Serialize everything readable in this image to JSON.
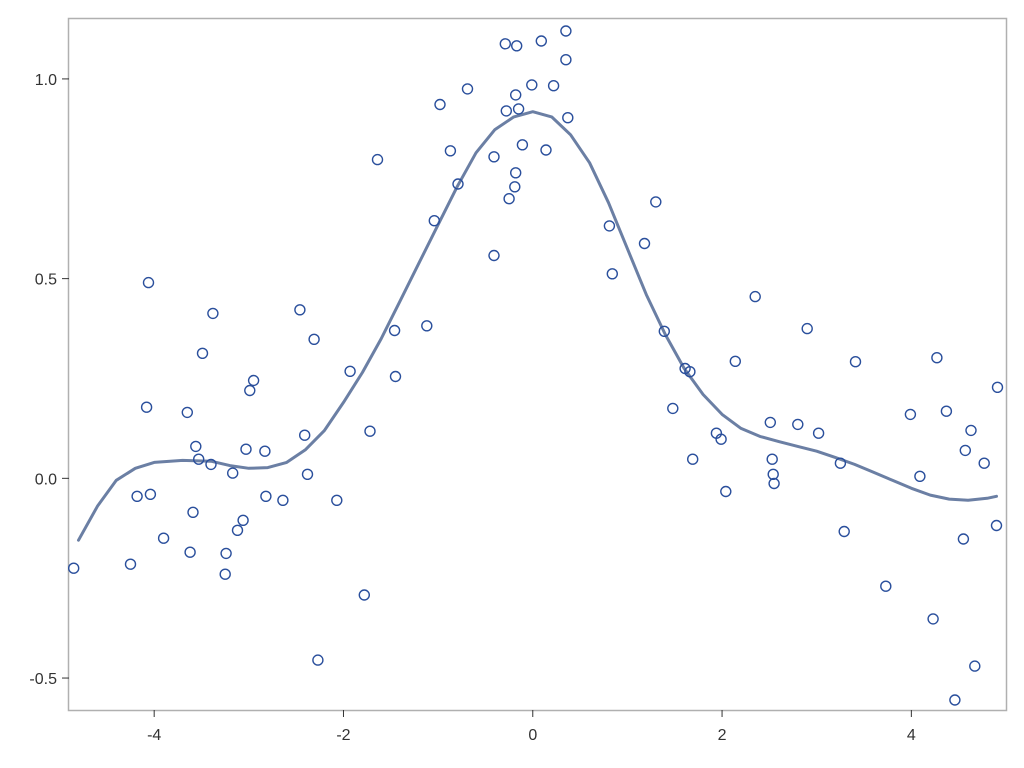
{
  "chart_data": {
    "type": "scatter",
    "title": "",
    "xlabel": "",
    "ylabel": "",
    "xlim": [
      -4.9,
      5.0
    ],
    "ylim": [
      -0.58,
      1.15
    ],
    "xticks": [
      -4,
      -2,
      0,
      2,
      4
    ],
    "xtick_labels": [
      "-4",
      "-2",
      "0",
      "2",
      "4"
    ],
    "yticks": [
      -0.5,
      0.0,
      0.5,
      1.0
    ],
    "ytick_labels": [
      "-0.5",
      "0.0",
      "0.5",
      "1.0"
    ],
    "grid": false,
    "legend": "none",
    "colors": {
      "points": "#2a4f9c",
      "fit": "#6b7fa4",
      "frame": "#b0b0b0",
      "ticks": "#333333"
    },
    "series": [
      {
        "kind": "scatter",
        "points": [
          [
            -4.85,
            -0.225
          ],
          [
            -4.25,
            -0.215
          ],
          [
            -4.18,
            -0.045
          ],
          [
            -4.04,
            -0.04
          ],
          [
            -4.06,
            0.49
          ],
          [
            -4.08,
            0.178
          ],
          [
            -3.9,
            -0.15
          ],
          [
            -3.65,
            0.165
          ],
          [
            -3.62,
            -0.185
          ],
          [
            -3.59,
            -0.085
          ],
          [
            -3.56,
            0.08
          ],
          [
            -3.53,
            0.048
          ],
          [
            -3.49,
            0.313
          ],
          [
            -3.4,
            0.035
          ],
          [
            -3.38,
            0.413
          ],
          [
            -3.25,
            -0.24
          ],
          [
            -3.24,
            -0.188
          ],
          [
            -3.17,
            0.013
          ],
          [
            -3.12,
            -0.13
          ],
          [
            -3.06,
            -0.105
          ],
          [
            -3.03,
            0.073
          ],
          [
            -2.99,
            0.22
          ],
          [
            -2.95,
            0.245
          ],
          [
            -2.83,
            0.068
          ],
          [
            -2.82,
            -0.045
          ],
          [
            -2.64,
            -0.055
          ],
          [
            -2.46,
            0.422
          ],
          [
            -2.41,
            0.108
          ],
          [
            -2.38,
            0.01
          ],
          [
            -2.31,
            0.348
          ],
          [
            -2.27,
            -0.455
          ],
          [
            -2.07,
            -0.055
          ],
          [
            -1.93,
            0.268
          ],
          [
            -1.78,
            -0.292
          ],
          [
            -1.72,
            0.118
          ],
          [
            -1.64,
            0.798
          ],
          [
            -1.46,
            0.37
          ],
          [
            -1.45,
            0.255
          ],
          [
            -1.12,
            0.382
          ],
          [
            -1.04,
            0.645
          ],
          [
            -0.98,
            0.936
          ],
          [
            -0.87,
            0.82
          ],
          [
            -0.79,
            0.737
          ],
          [
            -0.69,
            0.975
          ],
          [
            -0.41,
            0.558
          ],
          [
            -0.41,
            0.805
          ],
          [
            -0.29,
            1.088
          ],
          [
            -0.28,
            0.92
          ],
          [
            -0.25,
            0.7
          ],
          [
            -0.19,
            0.73
          ],
          [
            -0.18,
            0.765
          ],
          [
            -0.18,
            0.96
          ],
          [
            -0.17,
            1.083
          ],
          [
            -0.15,
            0.925
          ],
          [
            -0.11,
            0.835
          ],
          [
            -0.01,
            0.985
          ],
          [
            0.09,
            1.095
          ],
          [
            0.14,
            0.822
          ],
          [
            0.22,
            0.983
          ],
          [
            0.35,
            1.048
          ],
          [
            0.35,
            1.12
          ],
          [
            0.37,
            0.903
          ],
          [
            0.81,
            0.632
          ],
          [
            0.84,
            0.512
          ],
          [
            1.18,
            0.588
          ],
          [
            1.3,
            0.692
          ],
          [
            1.39,
            0.368
          ],
          [
            1.48,
            0.175
          ],
          [
            1.61,
            0.275
          ],
          [
            1.66,
            0.267
          ],
          [
            1.69,
            0.048
          ],
          [
            1.94,
            0.113
          ],
          [
            1.99,
            0.098
          ],
          [
            2.04,
            -0.033
          ],
          [
            2.14,
            0.293
          ],
          [
            2.35,
            0.455
          ],
          [
            2.51,
            0.14
          ],
          [
            2.53,
            0.048
          ],
          [
            2.54,
            0.01
          ],
          [
            2.55,
            -0.013
          ],
          [
            2.8,
            0.135
          ],
          [
            2.9,
            0.375
          ],
          [
            3.02,
            0.113
          ],
          [
            3.25,
            0.038
          ],
          [
            3.29,
            -0.133
          ],
          [
            3.41,
            0.292
          ],
          [
            3.73,
            -0.27
          ],
          [
            3.99,
            0.16
          ],
          [
            4.09,
            0.005
          ],
          [
            4.23,
            -0.352
          ],
          [
            4.27,
            0.302
          ],
          [
            4.37,
            0.168
          ],
          [
            4.46,
            -0.555
          ],
          [
            4.55,
            -0.152
          ],
          [
            4.57,
            0.07
          ],
          [
            4.63,
            0.12
          ],
          [
            4.67,
            -0.47
          ],
          [
            4.77,
            0.038
          ],
          [
            4.9,
            -0.118
          ],
          [
            4.91,
            0.228
          ]
        ]
      },
      {
        "kind": "line",
        "points": [
          [
            -4.8,
            -0.155
          ],
          [
            -4.6,
            -0.07
          ],
          [
            -4.4,
            -0.005
          ],
          [
            -4.2,
            0.025
          ],
          [
            -4.0,
            0.04
          ],
          [
            -3.7,
            0.045
          ],
          [
            -3.4,
            0.043
          ],
          [
            -3.2,
            0.032
          ],
          [
            -3.0,
            0.025
          ],
          [
            -2.8,
            0.027
          ],
          [
            -2.6,
            0.04
          ],
          [
            -2.4,
            0.072
          ],
          [
            -2.2,
            0.12
          ],
          [
            -2.0,
            0.19
          ],
          [
            -1.8,
            0.265
          ],
          [
            -1.6,
            0.35
          ],
          [
            -1.4,
            0.445
          ],
          [
            -1.2,
            0.54
          ],
          [
            -1.0,
            0.635
          ],
          [
            -0.8,
            0.73
          ],
          [
            -0.6,
            0.815
          ],
          [
            -0.4,
            0.873
          ],
          [
            -0.2,
            0.905
          ],
          [
            0.0,
            0.918
          ],
          [
            0.2,
            0.905
          ],
          [
            0.4,
            0.86
          ],
          [
            0.6,
            0.79
          ],
          [
            0.8,
            0.69
          ],
          [
            1.0,
            0.575
          ],
          [
            1.2,
            0.46
          ],
          [
            1.4,
            0.36
          ],
          [
            1.6,
            0.275
          ],
          [
            1.8,
            0.21
          ],
          [
            2.0,
            0.16
          ],
          [
            2.2,
            0.125
          ],
          [
            2.4,
            0.105
          ],
          [
            2.6,
            0.092
          ],
          [
            2.8,
            0.08
          ],
          [
            3.0,
            0.068
          ],
          [
            3.2,
            0.052
          ],
          [
            3.4,
            0.035
          ],
          [
            3.6,
            0.015
          ],
          [
            3.8,
            -0.005
          ],
          [
            4.0,
            -0.025
          ],
          [
            4.2,
            -0.042
          ],
          [
            4.4,
            -0.052
          ],
          [
            4.6,
            -0.055
          ],
          [
            4.8,
            -0.05
          ],
          [
            4.9,
            -0.045
          ]
        ]
      }
    ]
  }
}
